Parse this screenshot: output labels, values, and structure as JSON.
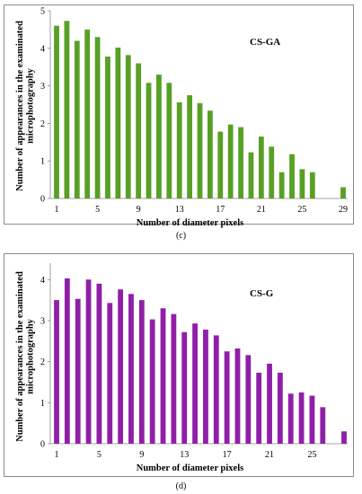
{
  "charts": [
    {
      "id": "c",
      "panel_label": "(c)",
      "chart_data": {
        "type": "bar",
        "title": "",
        "annotation": "CS-GA",
        "xlabel": "Number of diameter pixels",
        "ylabel_lines": [
          "Number of appearances in the examinated",
          "microphotography"
        ],
        "color": "#58a025",
        "x": [
          1,
          2,
          3,
          4,
          5,
          6,
          7,
          8,
          9,
          10,
          11,
          12,
          13,
          14,
          15,
          16,
          17,
          18,
          19,
          20,
          21,
          22,
          23,
          24,
          25,
          26,
          27,
          28,
          29
        ],
        "values": [
          4.6,
          4.73,
          4.2,
          4.5,
          4.3,
          3.78,
          4.02,
          3.82,
          3.6,
          3.08,
          3.3,
          3.08,
          2.56,
          2.75,
          2.54,
          2.34,
          1.78,
          1.97,
          1.9,
          1.23,
          1.65,
          1.38,
          0.7,
          1.18,
          0.78,
          0.7,
          0,
          0,
          0.3
        ],
        "xticks": [
          1,
          5,
          9,
          13,
          17,
          21,
          25,
          29
        ],
        "ylim": [
          0,
          5
        ],
        "yticks": [
          0,
          1,
          2,
          3,
          4,
          5
        ]
      }
    },
    {
      "id": "d",
      "panel_label": "(d)",
      "chart_data": {
        "type": "bar",
        "title": "",
        "annotation": "CS-G",
        "xlabel": "Number of diameter pixels",
        "ylabel_lines": [
          "Number of appearances in the examinated",
          "microphotography"
        ],
        "color": "#8f1fa8",
        "x": [
          1,
          2,
          3,
          4,
          5,
          6,
          7,
          8,
          9,
          10,
          11,
          12,
          13,
          14,
          15,
          16,
          17,
          18,
          19,
          20,
          21,
          22,
          23,
          24,
          25,
          26,
          27,
          28
        ],
        "values": [
          3.5,
          4.03,
          3.53,
          4.0,
          3.9,
          3.43,
          3.76,
          3.65,
          3.5,
          3.03,
          3.3,
          3.16,
          2.72,
          2.93,
          2.78,
          2.64,
          2.25,
          2.32,
          2.16,
          1.73,
          1.95,
          1.73,
          1.22,
          1.25,
          1.17,
          0.89,
          0,
          0.3
        ],
        "xticks": [
          1,
          5,
          9,
          13,
          17,
          21,
          25
        ],
        "ylim": [
          0,
          4.4
        ],
        "yticks": [
          0,
          1,
          2,
          3,
          4
        ]
      }
    }
  ]
}
